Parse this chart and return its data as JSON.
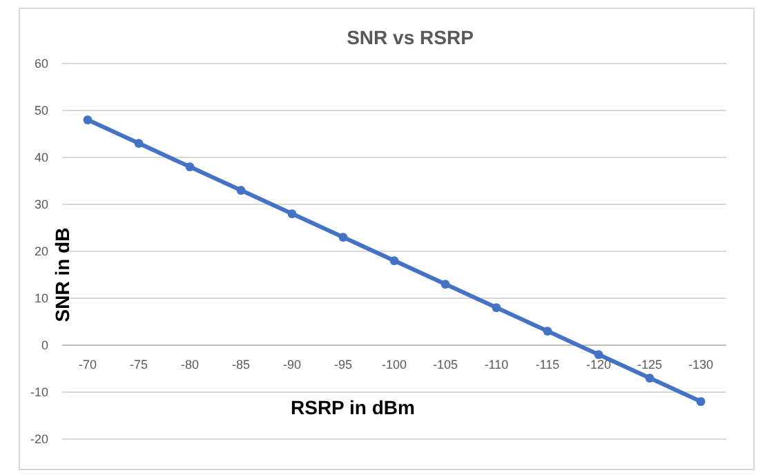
{
  "chart_data": {
    "type": "line",
    "title": "SNR vs RSRP",
    "xlabel": "RSRP in dBm",
    "ylabel": "SNR in dB",
    "categories": [
      "-70",
      "-75",
      "-80",
      "-85",
      "-90",
      "-95",
      "-100",
      "-105",
      "-110",
      "-115",
      "-120",
      "-125",
      "-130"
    ],
    "series": [
      {
        "color": "#4472c4",
        "values": [
          48,
          43,
          38,
          33,
          28,
          23,
          18,
          13,
          8,
          3,
          -2,
          -7,
          -12
        ]
      }
    ],
    "ylim": [
      -20,
      60
    ],
    "yticks": [
      -20,
      -10,
      0,
      10,
      20,
      30,
      40,
      50,
      60
    ],
    "grid": "y",
    "marker": "circle",
    "line_style": "solid"
  }
}
